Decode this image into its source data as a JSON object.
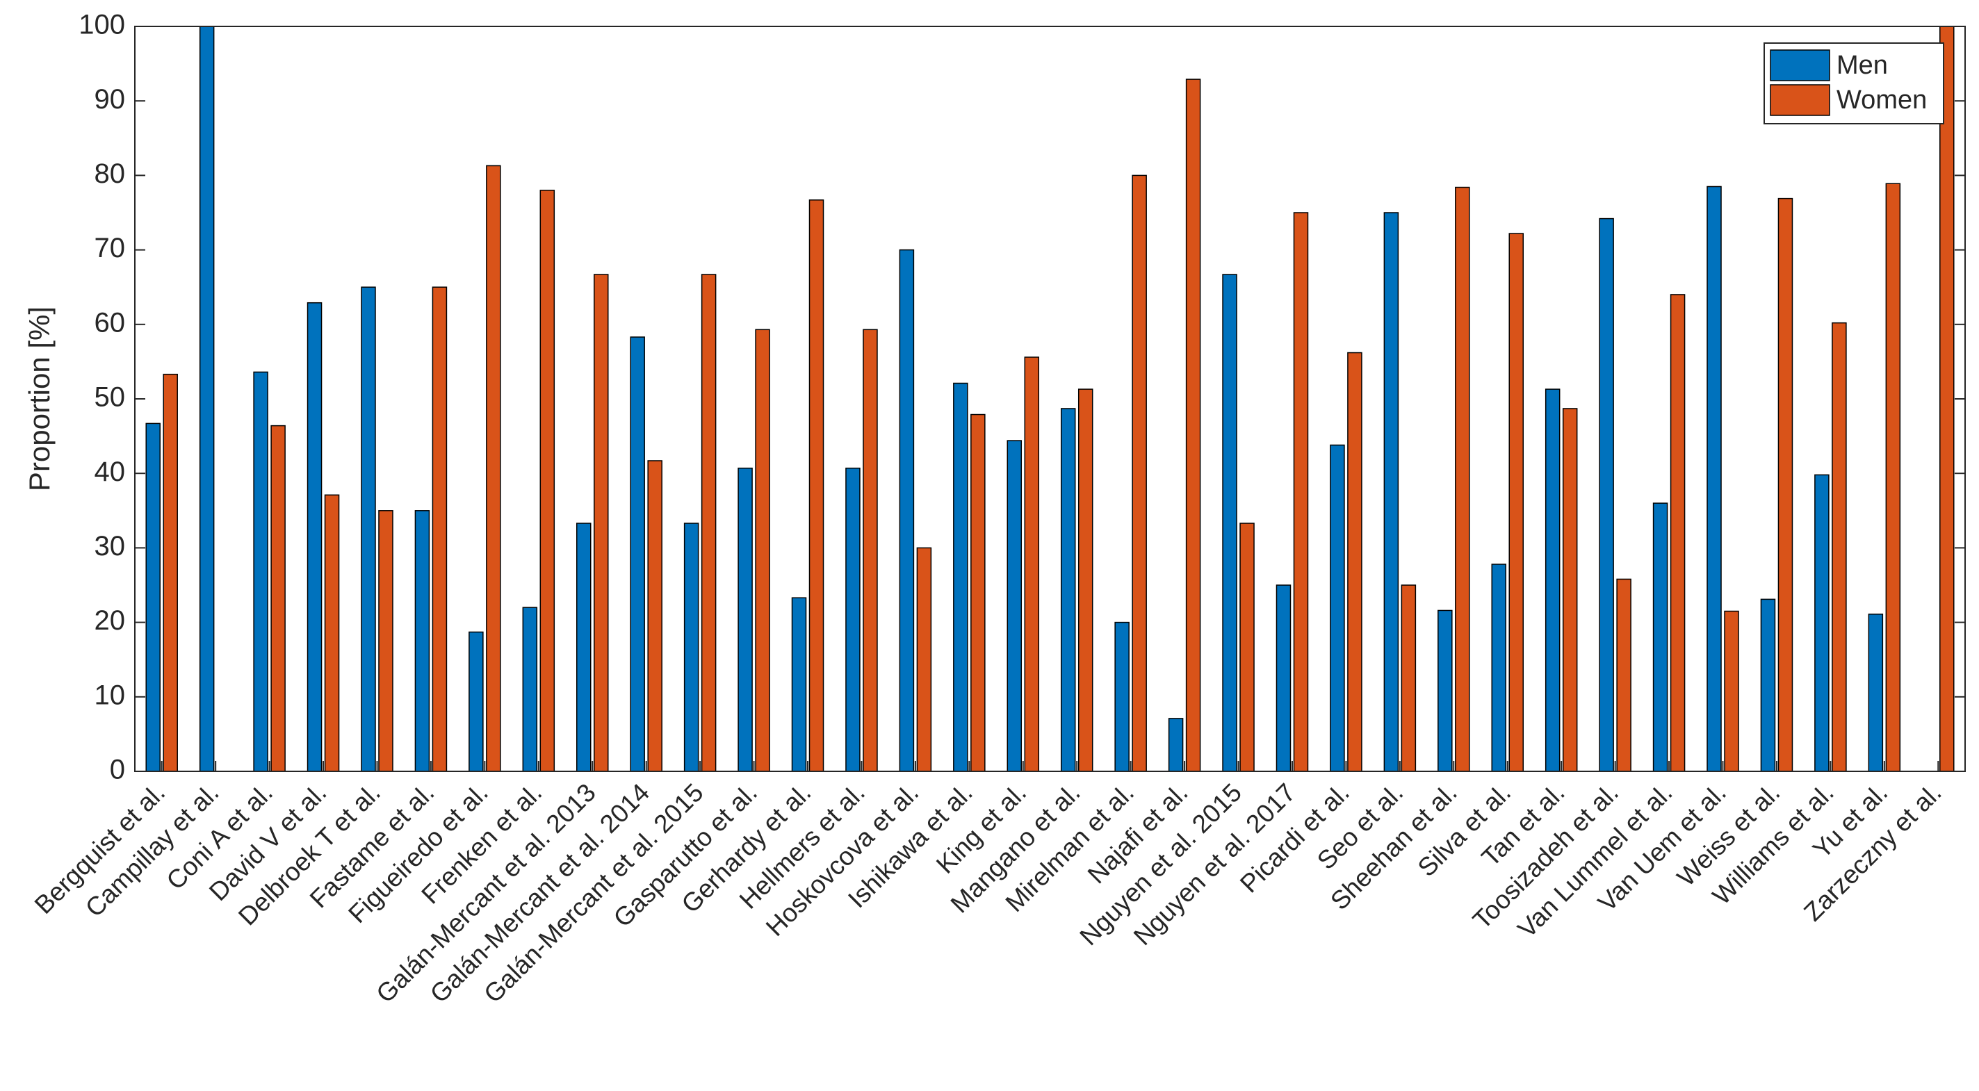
{
  "chart_data": {
    "type": "bar",
    "ylabel": "Proportion [%]",
    "categories": [
      "Bergquist et al.",
      "Campillay et al.",
      "Coni A et al.",
      "David V et al.",
      "Delbroek T et al.",
      "Fastame et al.",
      "Figueiredo et al.",
      "Frenken et al.",
      "Galán-Mercant et al. 2013",
      "Galán-Mercant et al. 2014",
      "Galán-Mercant et al. 2015",
      "Gasparutto et al.",
      "Gerhardy et al.",
      "Hellmers et al.",
      "Hoskovcova et al.",
      "Ishikawa et al.",
      "King et al.",
      "Mangano et al.",
      "Mirelman et al.",
      "Najafi et al.",
      "Nguyen et al. 2015",
      "Nguyen et al. 2017",
      "Picardi et al.",
      "Seo et al.",
      "Sheehan et al.",
      "Silva et al.",
      "Tan et al.",
      "Toosizadeh et al.",
      "Van Lummel et al.",
      "Van Uem et al.",
      "Weiss et al.",
      "Williams et al.",
      "Yu et al.",
      "Zarzeczny et al."
    ],
    "series": [
      {
        "name": "Men",
        "color": "#0072bd",
        "values": [
          46.7,
          100,
          53.6,
          62.9,
          65,
          35,
          18.7,
          22,
          33.3,
          58.3,
          33.3,
          40.7,
          23.3,
          40.7,
          70,
          52.1,
          44.4,
          48.7,
          20,
          7.1,
          66.7,
          25,
          43.8,
          75,
          21.6,
          27.8,
          51.3,
          74.2,
          36,
          78.5,
          23.1,
          39.8,
          21.1,
          0
        ]
      },
      {
        "name": "Women",
        "color": "#d95319",
        "values": [
          53.3,
          0,
          46.4,
          37.1,
          35,
          65,
          81.3,
          78,
          66.7,
          41.7,
          66.7,
          59.3,
          76.7,
          59.3,
          30,
          47.9,
          55.6,
          51.3,
          80,
          92.9,
          33.3,
          75,
          56.2,
          25,
          78.4,
          72.2,
          48.7,
          25.8,
          64,
          21.5,
          76.9,
          60.2,
          78.9,
          100
        ]
      }
    ],
    "ylim": [
      0,
      100
    ],
    "yticks": [
      0,
      10,
      20,
      30,
      40,
      50,
      60,
      70,
      80,
      90,
      100
    ],
    "grid": false,
    "legend": "northeast"
  }
}
